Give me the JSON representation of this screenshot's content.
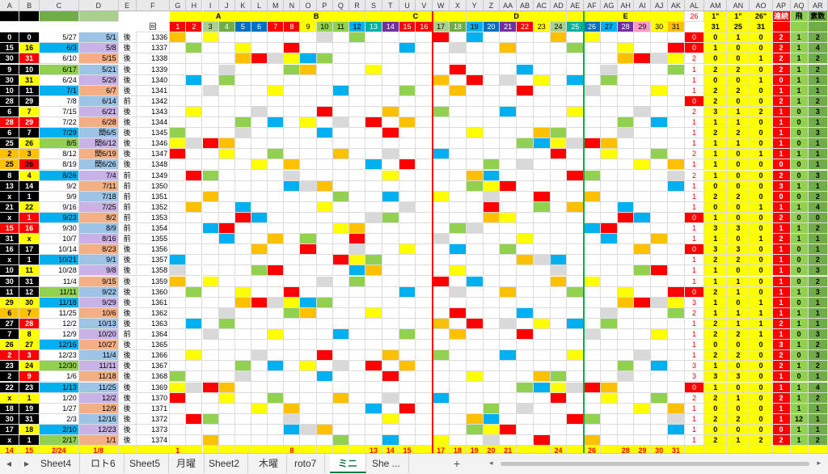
{
  "colors": {
    "yellow": "#ffff00",
    "gold": "#ffc000",
    "orange": "#ffa500",
    "red": "#ff0000",
    "green": "#70ad47",
    "lightgreen": "#92d050",
    "teal": "#00b0a0",
    "blue": "#0070c0",
    "skyblue": "#00b0f0",
    "purple": "#7030a0",
    "pink": "#ff99cc",
    "gray": "#808080",
    "lightgray": "#d9d9d9",
    "black": "#000000",
    "lightblue": "#9dc3e6",
    "olive": "#a9d08e"
  },
  "column_letters": [
    "A",
    "B",
    "C",
    "D",
    "E",
    "F",
    "G",
    "H",
    "I",
    "J",
    "K",
    "L",
    "M",
    "N",
    "O",
    "P",
    "Q",
    "R",
    "S",
    "T",
    "U",
    "V",
    "W",
    "X",
    "Y",
    "Z",
    "AA",
    "AB",
    "AC",
    "AD",
    "AE",
    "AF",
    "AG",
    "AH",
    "AI",
    "AJ",
    "AK",
    "AL",
    "AM",
    "AN",
    "AO",
    "AP",
    "AQ",
    "AR"
  ],
  "group_headers": [
    "A",
    "B",
    "C",
    "D",
    "E"
  ],
  "header_row": {
    "f_label": "回",
    "g_numbers": [
      "1",
      "2",
      "3",
      "4",
      "5",
      "6",
      "7",
      "8",
      "9",
      "10",
      "11",
      "12",
      "13",
      "14",
      "15",
      "16",
      "17",
      "18",
      "19",
      "20",
      "21",
      "22",
      "23",
      "24",
      "25",
      "26",
      "27",
      "28",
      "29",
      "30",
      "31"
    ],
    "al": "26",
    "am": "1\"",
    "an": "1\"",
    "ao": "26\"",
    "ap": "連続",
    "aq": "飛",
    "ar": "素数",
    "am2": "31",
    "an2": "25",
    "ao2": "31"
  },
  "rows": [
    {
      "a": "0",
      "b": "0",
      "c": "5/27",
      "d": "5/1",
      "e": "後",
      "f": "1336",
      "al": "0",
      "am": "0",
      "an": "1",
      "ao": "0",
      "ap": "2",
      "aq": "1",
      "ar": "2"
    },
    {
      "a": "15",
      "b": "16",
      "c": "6/3",
      "d": "5/8",
      "e": "後",
      "f": "1337",
      "al": "0",
      "am": "1",
      "an": "0",
      "ao": "0",
      "ap": "2",
      "aq": "1",
      "ar": "4"
    },
    {
      "a": "30",
      "b": "31",
      "c": "6/10",
      "d": "5/15",
      "e": "後",
      "f": "1338",
      "al": "2",
      "am": "0",
      "an": "0",
      "ao": "1",
      "ap": "2",
      "aq": "1",
      "ar": "2"
    },
    {
      "a": "9",
      "b": "10",
      "c": "6/17",
      "d": "5/21",
      "e": "後",
      "f": "1339",
      "al": "1",
      "am": "2",
      "an": "2",
      "ao": "0",
      "ap": "2",
      "aq": "1",
      "ar": "2"
    },
    {
      "a": "30",
      "b": "31",
      "c": "6/24",
      "d": "5/29",
      "e": "後",
      "f": "1340",
      "al": "1",
      "am": "0",
      "an": "0",
      "ao": "1",
      "ap": "0",
      "aq": "1",
      "ar": "1"
    },
    {
      "a": "10",
      "b": "11",
      "c": "7/1",
      "d": "6/7",
      "e": "後",
      "f": "1341",
      "al": "1",
      "am": "2",
      "an": "2",
      "ao": "0",
      "ap": "1",
      "aq": "1",
      "ar": "1"
    },
    {
      "a": "28",
      "b": "29",
      "c": "7/8",
      "d": "6/14",
      "e": "前",
      "f": "1342",
      "al": "0",
      "am": "2",
      "an": "0",
      "ao": "0",
      "ap": "2",
      "aq": "1",
      "ar": "2"
    },
    {
      "a": "6",
      "b": "7",
      "c": "7/15",
      "d": "6/21",
      "e": "後",
      "f": "1343",
      "al": "2",
      "am": "3",
      "an": "1",
      "ao": "2",
      "ap": "1",
      "aq": "0",
      "ar": "3"
    },
    {
      "a": "28",
      "b": "29",
      "c": "7/22",
      "d": "6/28",
      "e": "後",
      "f": "1344",
      "al": "1",
      "am": "1",
      "an": "1",
      "ao": "0",
      "ap": "1",
      "aq": "0",
      "ar": "1"
    },
    {
      "a": "6",
      "b": "7",
      "c": "7/29",
      "d": "閏6/5",
      "e": "後",
      "f": "1345",
      "al": "1",
      "am": "2",
      "an": "2",
      "ao": "0",
      "ap": "1",
      "aq": "0",
      "ar": "3"
    },
    {
      "a": "25",
      "b": "26",
      "c": "8/5",
      "d": "閏6/12",
      "e": "後",
      "f": "1346",
      "al": "1",
      "am": "1",
      "an": "1",
      "ao": "0",
      "ap": "1",
      "aq": "0",
      "ar": "1"
    },
    {
      "a": "2",
      "b": "3",
      "c": "8/12",
      "d": "閏6/19",
      "e": "後",
      "f": "1347",
      "al": "2",
      "am": "1",
      "an": "0",
      "ao": "1",
      "ap": "1",
      "aq": "1",
      "ar": "1"
    },
    {
      "a": "25",
      "b": "26",
      "c": "8/19",
      "d": "閏6/26",
      "e": "後",
      "f": "1348",
      "al": "1",
      "am": "1",
      "an": "0",
      "ao": "0",
      "ap": "0",
      "aq": "0",
      "ar": "1"
    },
    {
      "a": "8",
      "b": "4",
      "c": "8/26",
      "d": "7/4",
      "e": "前",
      "f": "1349",
      "al": "2",
      "am": "1",
      "an": "0",
      "ao": "0",
      "ap": "2",
      "aq": "0",
      "ar": "3"
    },
    {
      "a": "13",
      "b": "14",
      "c": "9/2",
      "d": "7/11",
      "e": "前",
      "f": "1350",
      "al": "1",
      "am": "0",
      "an": "0",
      "ao": "0",
      "ap": "3",
      "aq": "1",
      "ar": "1"
    },
    {
      "a": "x",
      "b": "1",
      "c": "9/9",
      "d": "7/18",
      "e": "前",
      "f": "1351",
      "al": "1",
      "am": "2",
      "an": "2",
      "ao": "0",
      "ap": "0",
      "aq": "0",
      "ar": "2"
    },
    {
      "a": "21",
      "b": "22",
      "c": "9/16",
      "d": "7/25",
      "e": "前",
      "f": "1352",
      "al": "1",
      "am": "0",
      "an": "0",
      "ao": "1",
      "ap": "1",
      "aq": "1",
      "ar": "4"
    },
    {
      "a": "x",
      "b": "1",
      "c": "9/23",
      "d": "8/2",
      "e": "前",
      "f": "1353",
      "al": "0",
      "am": "1",
      "an": "0",
      "ao": "0",
      "ap": "2",
      "aq": "0",
      "ar": "0"
    },
    {
      "a": "15",
      "b": "16",
      "c": "9/30",
      "d": "8/9",
      "e": "前",
      "f": "1354",
      "al": "1",
      "am": "3",
      "an": "3",
      "ao": "0",
      "ap": "1",
      "aq": "1",
      "ar": "2"
    },
    {
      "a": "31",
      "b": "x",
      "c": "10/7",
      "d": "8/16",
      "e": "前",
      "f": "1355",
      "al": "1",
      "am": "1",
      "an": "0",
      "ao": "1",
      "ap": "2",
      "aq": "1",
      "ar": "1"
    },
    {
      "a": "16",
      "b": "17",
      "c": "10/14",
      "d": "8/23",
      "e": "後",
      "f": "1356",
      "al": "0",
      "am": "3",
      "an": "3",
      "ao": "0",
      "ap": "1",
      "aq": "0",
      "ar": "1"
    },
    {
      "a": "x",
      "b": "1",
      "c": "10/21",
      "d": "9/1",
      "e": "後",
      "f": "1357",
      "al": "1",
      "am": "2",
      "an": "2",
      "ao": "0",
      "ap": "1",
      "aq": "0",
      "ar": "2"
    },
    {
      "a": "10",
      "b": "11",
      "c": "10/28",
      "d": "9/8",
      "e": "後",
      "f": "1358",
      "al": "1",
      "am": "1",
      "an": "0",
      "ao": "0",
      "ap": "1",
      "aq": "0",
      "ar": "3"
    },
    {
      "a": "30",
      "b": "31",
      "c": "11/4",
      "d": "9/15",
      "e": "後",
      "f": "1359",
      "al": "1",
      "am": "1",
      "an": "1",
      "ao": "0",
      "ap": "1",
      "aq": "0",
      "ar": "2"
    },
    {
      "a": "11",
      "b": "12",
      "c": "11/11",
      "d": "9/22",
      "e": "後",
      "f": "1360",
      "al": "0",
      "am": "2",
      "an": "1",
      "ao": "0",
      "ap": "1",
      "aq": "1",
      "ar": "3"
    },
    {
      "a": "29",
      "b": "30",
      "c": "11/18",
      "d": "9/29",
      "e": "後",
      "f": "1361",
      "al": "3",
      "am": "1",
      "an": "0",
      "ao": "1",
      "ap": "1",
      "aq": "0",
      "ar": "1"
    },
    {
      "a": "6",
      "b": "7",
      "c": "11/25",
      "d": "10/6",
      "e": "後",
      "f": "1362",
      "al": "2",
      "am": "1",
      "an": "1",
      "ao": "1",
      "ap": "1",
      "aq": "1",
      "ar": "1"
    },
    {
      "a": "27",
      "b": "28",
      "c": "12/2",
      "d": "10/13",
      "e": "後",
      "f": "1363",
      "al": "1",
      "am": "2",
      "an": "1",
      "ao": "1",
      "ap": "2",
      "aq": "1",
      "ar": "1"
    },
    {
      "a": "7",
      "b": "8",
      "c": "12/9",
      "d": "10/20",
      "e": "前",
      "f": "1364",
      "al": "1",
      "am": "2",
      "an": "2",
      "ao": "1",
      "ap": "1",
      "aq": "0",
      "ar": "3"
    },
    {
      "a": "26",
      "b": "27",
      "c": "12/16",
      "d": "10/27",
      "e": "後",
      "f": "1365",
      "al": "1",
      "am": "0",
      "an": "0",
      "ao": "0",
      "ap": "3",
      "aq": "1",
      "ar": "2"
    },
    {
      "a": "2",
      "b": "3",
      "c": "12/23",
      "d": "11/4",
      "e": "後",
      "f": "1366",
      "al": "1",
      "am": "2",
      "an": "2",
      "ao": "0",
      "ap": "2",
      "aq": "0",
      "ar": "3"
    },
    {
      "a": "23",
      "b": "24",
      "c": "12/30",
      "d": "11/11",
      "e": "後",
      "f": "1367",
      "al": "3",
      "am": "1",
      "an": "0",
      "ao": "0",
      "ap": "2",
      "aq": "1",
      "ar": "2"
    },
    {
      "a": "2",
      "b": "9",
      "c": "1/6",
      "d": "11/18",
      "e": "後",
      "f": "1368",
      "al": "3",
      "am": "3",
      "an": "3",
      "ao": "0",
      "ap": "1",
      "aq": "0",
      "ar": "1"
    },
    {
      "a": "22",
      "b": "23",
      "c": "1/13",
      "d": "11/25",
      "e": "後",
      "f": "1369",
      "al": "0",
      "am": "1",
      "an": "0",
      "ao": "0",
      "ap": "1",
      "aq": "1",
      "ar": "4"
    },
    {
      "a": "x",
      "b": "1",
      "c": "1/20",
      "d": "12/2",
      "e": "後",
      "f": "1370",
      "al": "2",
      "am": "2",
      "an": "1",
      "ao": "0",
      "ap": "2",
      "aq": "1",
      "ar": "2"
    },
    {
      "a": "18",
      "b": "19",
      "c": "1/27",
      "d": "12/9",
      "e": "後",
      "f": "1371",
      "al": "1",
      "am": "0",
      "an": "0",
      "ao": "0",
      "ap": "1",
      "aq": "1",
      "ar": "1"
    },
    {
      "a": "30",
      "b": "31",
      "c": "2/3",
      "d": "12/16",
      "e": "後",
      "f": "1372",
      "al": "1",
      "am": "2",
      "an": "2",
      "ao": "0",
      "ap": "1",
      "aq": "12",
      "ar": "1"
    },
    {
      "a": "17",
      "b": "18",
      "c": "2/10",
      "d": "12/23",
      "e": "後",
      "f": "1373",
      "al": "1",
      "am": "0",
      "an": "0",
      "ao": "0",
      "ap": "0",
      "aq": "1",
      "ar": "1"
    },
    {
      "a": "x",
      "b": "1",
      "c": "2/17",
      "d": "1/1",
      "e": "後",
      "f": "1374",
      "al": "1",
      "am": "2",
      "an": "1",
      "ao": "2",
      "ap": "2",
      "aq": "1",
      "ar": "2"
    }
  ],
  "footer_row": {
    "a": "14",
    "b": "15",
    "c": "2/24",
    "d": "1/8",
    "g": "1",
    "n": "8",
    "s": "13",
    "t": "14",
    "u": "15",
    "w": "17",
    "x": "18",
    "y": "19",
    "z": "20",
    "aa": "21",
    "ad": "24",
    "af": "26",
    "ah": "28",
    "ai": "29",
    "aj": "30",
    "ak": "31"
  },
  "tabs": [
    {
      "label": "Sheet4"
    },
    {
      "label": "ロト6"
    },
    {
      "label": "Sheet5"
    },
    {
      "label": "月曜"
    },
    {
      "label": "Sheet2"
    },
    {
      "label": "木曜"
    },
    {
      "label": "roto7"
    },
    {
      "label": "ミニ"
    },
    {
      "label": "She ..."
    }
  ],
  "active_tab": "ミニ",
  "add_sheet_label": "+",
  "nav_left": "◂",
  "nav_right": "▸",
  "scroll_left": "◂",
  "scroll_right": "▸"
}
